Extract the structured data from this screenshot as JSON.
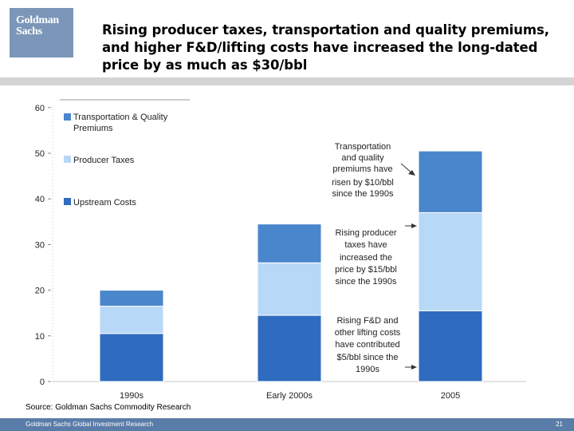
{
  "header": {
    "logo_line1": "Goldman",
    "logo_line2": "Sachs",
    "title": "Rising producer taxes, transportation and quality premiums, and higher F&D/lifting costs have increased the long-dated price by as much as $30/bbl"
  },
  "colors": {
    "upstream": "#2f6cc0",
    "producer": "#b7d8f7",
    "transport": "#4a86cb",
    "header_band": "#d4d4d4",
    "footer_band": "#5a7ca8",
    "logo": "#7b96b8"
  },
  "chart_data": {
    "type": "bar",
    "stacked": true,
    "title": "",
    "xlabel": "",
    "ylabel": "",
    "ylim": [
      0,
      60
    ],
    "yticks": [
      0,
      10,
      20,
      30,
      40,
      50,
      60
    ],
    "categories": [
      "1990s",
      "Early 2000s",
      "2005"
    ],
    "series": [
      {
        "name": "Upstream Costs",
        "values": [
          10.5,
          14.5,
          15.5
        ]
      },
      {
        "name": "Producer Taxes",
        "values": [
          6.0,
          11.5,
          21.5
        ]
      },
      {
        "name": "Transportation & Quality Premiums",
        "values": [
          3.5,
          8.5,
          13.5
        ]
      }
    ],
    "legend": [
      "Transportation & Quality",
      "Premiums",
      "Producer Taxes",
      "Upstream Costs"
    ],
    "annotations": [
      [
        "Transportation",
        "and quality",
        "premiums have",
        "risen by $10/bbl",
        "since the 1990s"
      ],
      [
        "Rising producer",
        "taxes have",
        "increased the",
        "price by $15/bbl",
        "since the 1990s"
      ],
      [
        "Rising F&D and",
        "other lifting costs",
        "have contributed",
        "$5/bbl since the",
        "1990s"
      ]
    ]
  },
  "source": "Source: Goldman Sachs Commodity Research",
  "footer": {
    "text": "Goldman Sachs Global Investment Research",
    "page": "21"
  }
}
